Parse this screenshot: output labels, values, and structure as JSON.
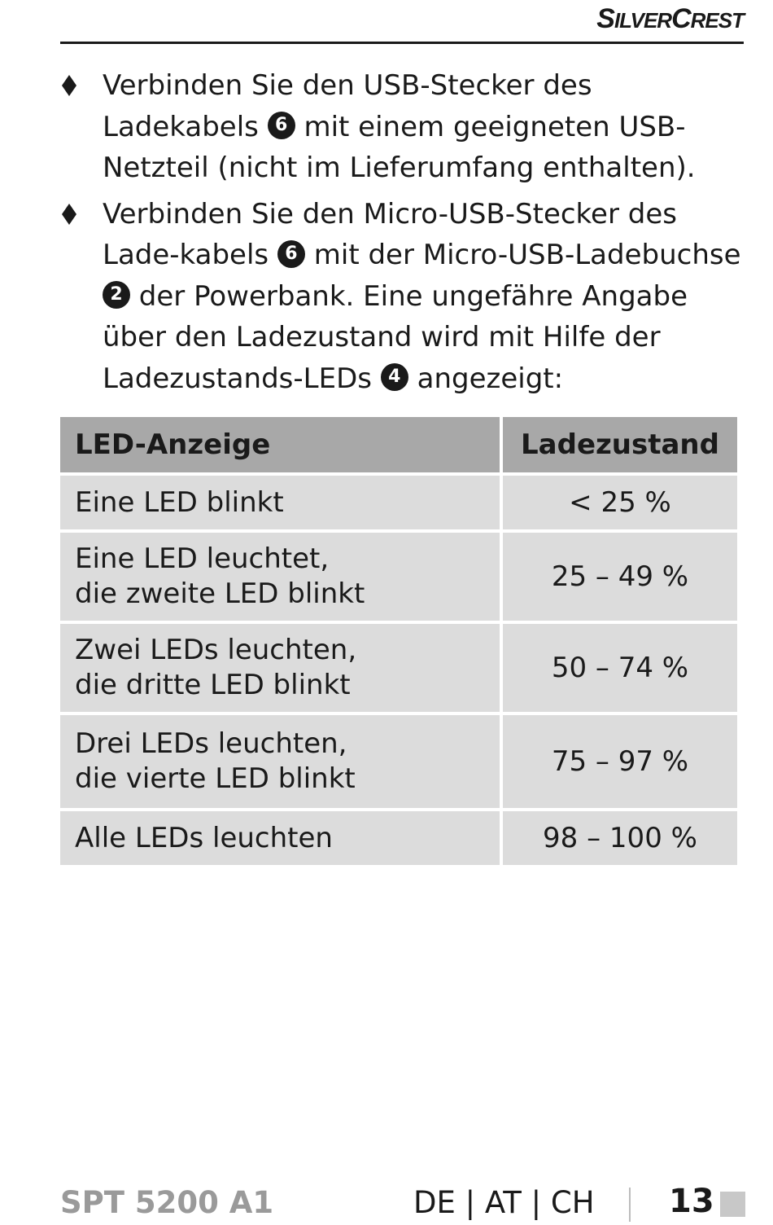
{
  "header": {
    "brand_first": "S",
    "brand_first_small": "ILVER",
    "brand_second": "C",
    "brand_second_small": "REST"
  },
  "bullets": [
    {
      "text_a": "Verbinden Sie den USB-Stecker des Ladekabels ",
      "ref_a": "6",
      "text_b": " mit einem geeigneten USB-Netzteil (nicht im Lieferumfang enthalten)."
    },
    {
      "text_a": "Verbinden Sie den Micro-USB-Stecker des Lade-kabels ",
      "ref_a": "6",
      "text_b": " mit der Micro-USB-Ladebuchse ",
      "ref_b": "2",
      "text_c": " der Powerbank. Eine ungefähre Angabe über den Ladezustand wird mit Hilfe der Ladezustands-LEDs ",
      "ref_c": "4",
      "text_d": " angezeigt:"
    }
  ],
  "table": {
    "headers": [
      "LED-Anzeige",
      "Ladezustand"
    ],
    "rows": [
      {
        "l1": "Eine LED blinkt",
        "l2": "",
        "value": "< 25 %"
      },
      {
        "l1": "Eine LED leuchtet,",
        "l2": "die zweite LED blinkt",
        "value": "25 – 49 %"
      },
      {
        "l1": "Zwei LEDs leuchten,",
        "l2": "die dritte LED blinkt",
        "value": "50 – 74 %"
      },
      {
        "l1": "Drei LEDs leuchten,",
        "l2": "die vierte LED blinkt",
        "value": "75 – 97 %"
      },
      {
        "l1": "Alle LEDs leuchten",
        "l2": "",
        "value": "98 – 100 %"
      }
    ]
  },
  "footer": {
    "model": "SPT 5200 A1",
    "countries": "DE | AT | CH",
    "page": "13"
  }
}
